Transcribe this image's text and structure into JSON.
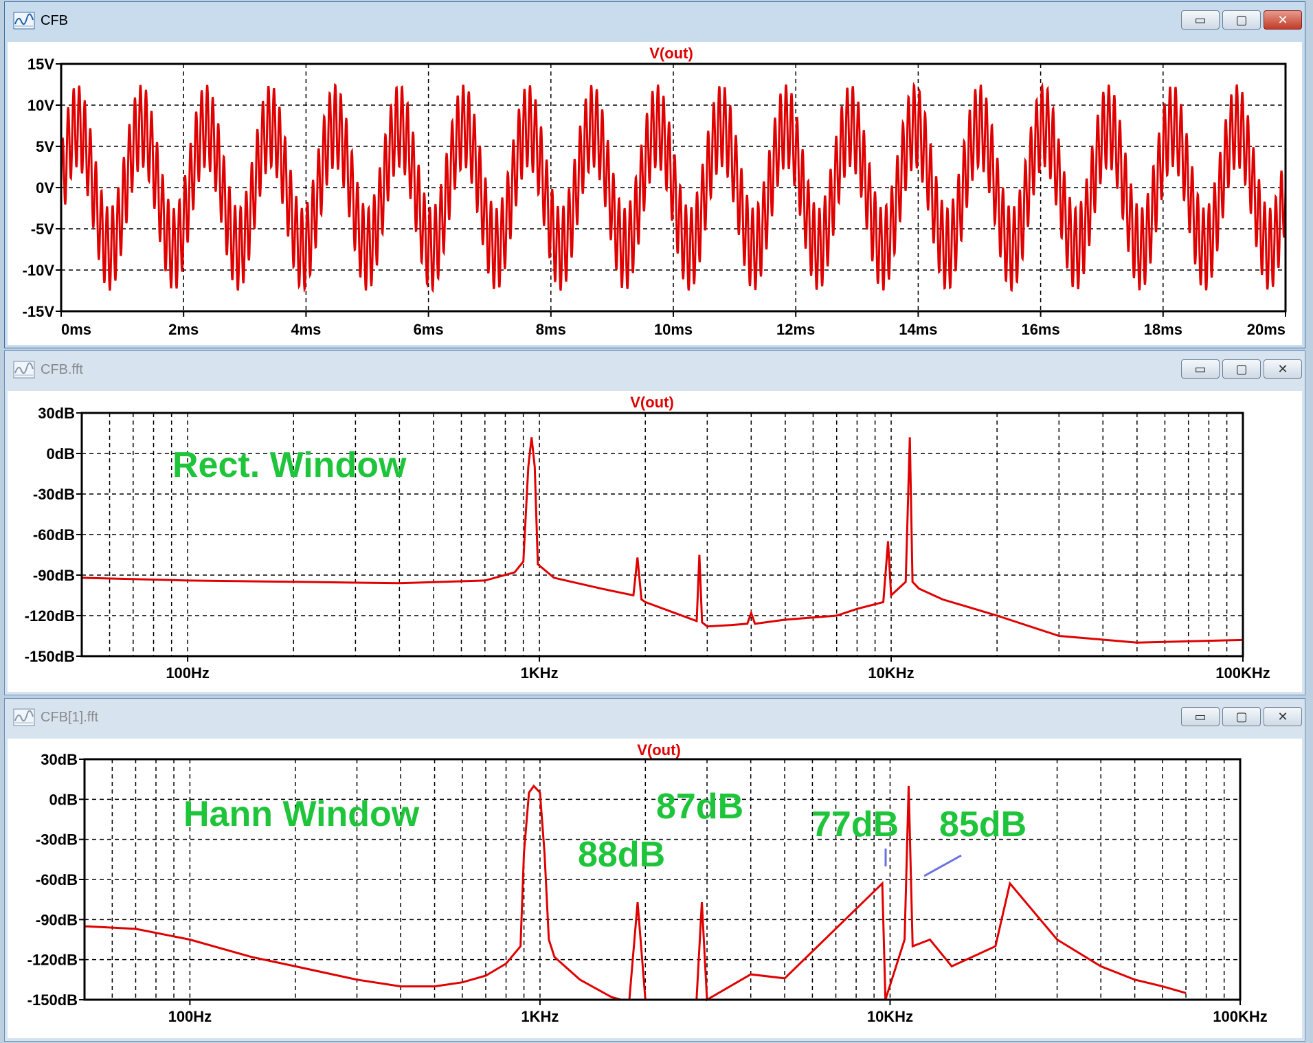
{
  "windows": [
    {
      "title": "CFB",
      "trace": "V(out)",
      "y_labels": [
        "15V",
        "10V",
        "5V",
        "0V",
        "-5V",
        "-10V",
        "-15V"
      ],
      "x_labels": [
        "0ms",
        "2ms",
        "4ms",
        "6ms",
        "8ms",
        "10ms",
        "12ms",
        "14ms",
        "16ms",
        "18ms",
        "20ms"
      ]
    },
    {
      "title": "CFB.fft",
      "trace": "V(out)",
      "y_labels": [
        "30dB",
        "0dB",
        "-30dB",
        "-60dB",
        "-90dB",
        "-120dB",
        "-150dB"
      ],
      "x_labels": [
        "100Hz",
        "1KHz",
        "10KHz",
        "100KHz"
      ],
      "annotation": "Rect. Window"
    },
    {
      "title": "CFB[1].fft",
      "trace": "V(out)",
      "y_labels": [
        "30dB",
        "0dB",
        "-30dB",
        "-60dB",
        "-90dB",
        "-120dB",
        "-150dB"
      ],
      "x_labels": [
        "100Hz",
        "1KHz",
        "10KHz",
        "100KHz"
      ],
      "annotation": "Hann Window",
      "labels": [
        "88dB",
        "87dB",
        "77dB",
        "85dB"
      ]
    }
  ],
  "window_controls": {
    "minimize": "▭",
    "maximize": "▢",
    "close": "✕"
  },
  "colors": {
    "trace": "#e00000",
    "annotation": "#1ec43a",
    "marker": "#6a72e0"
  },
  "chart_data": [
    {
      "type": "line",
      "title": "V(out)",
      "xlabel": "",
      "ylabel": "",
      "x_unit": "ms",
      "xlim": [
        0,
        20
      ],
      "y_unit": "V",
      "ylim": [
        -15,
        15
      ],
      "grid": true,
      "series": [
        {
          "name": "V(out)",
          "components": [
            {
              "freq_hz": 950,
              "amp_v": 7.5
            },
            {
              "freq_hz": 11000,
              "amp_v": 5
            }
          ]
        }
      ]
    },
    {
      "type": "line",
      "title": "V(out)",
      "x_scale": "log",
      "xlim_hz": [
        50,
        100000
      ],
      "y_unit": "dB",
      "ylim": [
        -150,
        30
      ],
      "grid": true,
      "series": [
        {
          "name": "V(out)",
          "x_hz": [
            50,
            100,
            200,
            400,
            700,
            850,
            900,
            930,
            950,
            970,
            990,
            1100,
            1500,
            1850,
            1900,
            1950,
            2000,
            2800,
            2850,
            2900,
            3000,
            3500,
            3900,
            4000,
            4100,
            5000,
            7000,
            8000,
            9500,
            9800,
            10000,
            11000,
            11300,
            11500,
            12000,
            14000,
            20000,
            30000,
            50000,
            100000
          ],
          "y_db": [
            -92,
            -94,
            -95,
            -96,
            -94,
            -88,
            -80,
            -10,
            12,
            -10,
            -82,
            -92,
            -100,
            -105,
            -77,
            -108,
            -110,
            -124,
            -75,
            -125,
            -128,
            -127,
            -126,
            -118,
            -126,
            -123,
            -120,
            -115,
            -110,
            -65,
            -105,
            -95,
            12,
            -95,
            -100,
            -108,
            -120,
            -135,
            -140,
            -138
          ]
        }
      ]
    },
    {
      "type": "line",
      "title": "V(out)",
      "x_scale": "log",
      "xlim_hz": [
        50,
        100000
      ],
      "y_unit": "dB",
      "ylim": [
        -150,
        30
      ],
      "grid": true,
      "series": [
        {
          "name": "V(out)",
          "x_hz": [
            50,
            70,
            100,
            150,
            200,
            300,
            400,
            500,
            600,
            700,
            800,
            880,
            900,
            930,
            960,
            1000,
            1030,
            1060,
            1100,
            1300,
            1600,
            1700,
            1800,
            1900,
            2000,
            2800,
            2900,
            3000,
            4000,
            5000,
            9500,
            9700,
            11000,
            11300,
            11600,
            13000,
            15000,
            20000,
            22000,
            30000,
            40000,
            50000,
            60000,
            70000
          ],
          "y_db": [
            -95,
            -97,
            -105,
            -118,
            -125,
            -135,
            -140,
            -140,
            -137,
            -132,
            -123,
            -110,
            -40,
            5,
            10,
            5,
            -40,
            -105,
            -118,
            -135,
            -148,
            -150,
            -150,
            -77,
            -150,
            -150,
            -77,
            -150,
            -131,
            -134,
            -63,
            -150,
            -105,
            10,
            -110,
            -105,
            -125,
            -110,
            -63,
            -105,
            -125,
            -135,
            -140,
            -145
          ]
        }
      ],
      "labels": [
        "88dB",
        "87dB",
        "77dB",
        "85dB"
      ]
    }
  ]
}
